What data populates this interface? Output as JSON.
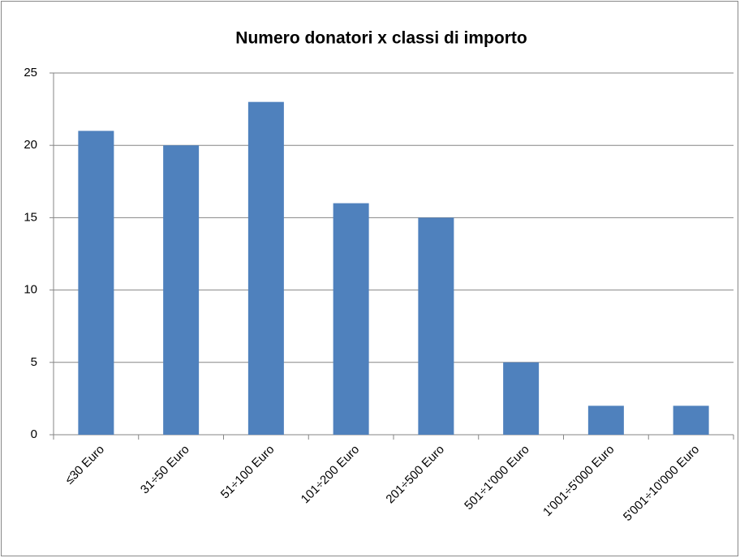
{
  "chart_data": {
    "type": "bar",
    "title": "Numero donatori x classi di importo",
    "categories": [
      "≤30 Euro",
      "31÷50 Euro",
      "51÷100 Euro",
      "101÷200 Euro",
      "201÷500 Euro",
      "501÷1'000 Euro",
      "1'001÷5'000 Euro",
      "5'001÷10'000 Euro"
    ],
    "values": [
      21,
      20,
      23,
      16,
      15,
      5,
      2,
      2
    ],
    "color": "#4f81bd",
    "ylim": [
      0,
      25
    ],
    "yticks": [
      0,
      5,
      10,
      15,
      20,
      25
    ],
    "grid": true
  }
}
